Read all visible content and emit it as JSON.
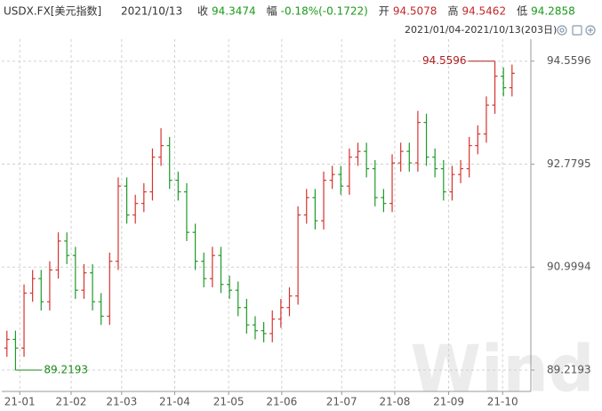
{
  "chart_data": {
    "type": "ohlc",
    "symbol": "USDX.FX[美元指数]",
    "date": "2021/10/13",
    "quote": [
      {
        "label": "收",
        "value": "94.3474",
        "color": "#1a9a1a"
      },
      {
        "label": "幅",
        "value": "-0.18%(-0.1722)",
        "color": "#1a9a1a"
      },
      {
        "label": "开",
        "value": "94.5078",
        "color": "#c0282b"
      },
      {
        "label": "高",
        "value": "94.5462",
        "color": "#c0282b"
      },
      {
        "label": "低",
        "value": "94.2858",
        "color": "#1a9a1a"
      }
    ],
    "range": "2021/01/04-2021/10/13(203日)",
    "watermark": "Wind",
    "up_color": "#d6332f",
    "down_color": "#1f9a2a",
    "open": [
      89.6,
      89.75,
      89.6,
      90.55,
      90.8,
      90.4,
      90.95,
      91.45,
      91.2,
      90.6,
      90.9,
      90.4,
      90.15,
      91.1,
      92.4,
      91.9,
      92.1,
      92.3,
      92.9,
      93.1,
      92.5,
      92.3,
      91.6,
      91.1,
      90.8,
      91.2,
      90.7,
      90.6,
      90.3,
      90.0,
      89.9,
      89.85,
      90.1,
      90.3,
      90.5,
      91.9,
      92.2,
      91.8,
      92.5,
      92.6,
      92.4,
      92.9,
      93.0,
      92.7,
      92.2,
      92.1,
      92.8,
      93.0,
      92.8,
      93.5,
      92.9,
      92.7,
      92.3,
      92.6,
      92.7,
      93.1,
      93.3,
      93.8,
      94.3,
      94.1
    ],
    "high": [
      89.9,
      89.9,
      90.7,
      90.95,
      90.95,
      91.1,
      91.6,
      91.6,
      91.35,
      91.05,
      91.05,
      90.55,
      91.25,
      92.55,
      92.55,
      92.25,
      92.45,
      93.05,
      93.4,
      93.25,
      92.65,
      92.45,
      91.75,
      91.25,
      91.35,
      91.35,
      90.85,
      90.75,
      90.45,
      90.15,
      90.05,
      90.25,
      90.45,
      90.65,
      92.05,
      92.35,
      92.35,
      92.65,
      92.75,
      92.75,
      93.05,
      93.15,
      93.15,
      92.85,
      92.35,
      92.95,
      93.15,
      93.15,
      93.7,
      93.65,
      93.05,
      92.85,
      92.75,
      92.85,
      93.25,
      93.45,
      93.95,
      94.5596,
      94.45,
      94.5
    ],
    "low": [
      89.45,
      89.2193,
      89.45,
      90.4,
      90.25,
      90.25,
      90.8,
      91.05,
      90.45,
      90.45,
      90.25,
      90.0,
      90.0,
      90.95,
      91.75,
      91.75,
      91.95,
      92.15,
      92.75,
      92.35,
      92.15,
      91.45,
      90.95,
      90.65,
      90.65,
      90.55,
      90.45,
      90.15,
      89.85,
      89.75,
      89.7,
      89.7,
      89.95,
      90.15,
      90.35,
      91.75,
      91.65,
      91.65,
      92.35,
      92.25,
      92.25,
      92.75,
      92.55,
      92.05,
      91.95,
      91.95,
      92.65,
      92.65,
      92.65,
      92.75,
      92.55,
      92.15,
      92.15,
      92.45,
      92.55,
      92.95,
      93.15,
      93.65,
      93.95,
      93.95
    ],
    "close": [
      89.75,
      89.6,
      90.55,
      90.8,
      90.4,
      90.95,
      91.45,
      91.2,
      90.6,
      90.9,
      90.4,
      90.15,
      91.1,
      92.4,
      91.9,
      92.1,
      92.3,
      92.9,
      93.1,
      92.5,
      92.3,
      91.6,
      91.1,
      90.8,
      91.2,
      90.7,
      90.6,
      90.3,
      90.0,
      89.9,
      89.85,
      90.1,
      90.3,
      90.5,
      91.9,
      92.2,
      91.8,
      92.5,
      92.6,
      92.4,
      92.9,
      93.0,
      92.7,
      92.2,
      92.1,
      92.8,
      93.0,
      92.8,
      93.5,
      92.9,
      92.7,
      92.3,
      92.6,
      92.7,
      93.1,
      93.3,
      93.8,
      94.3,
      94.1,
      94.35
    ],
    "xlim": [
      -0.6,
      61.2
    ],
    "xticks": [
      {
        "value": 1.5,
        "label": "21-01"
      },
      {
        "value": 7.5,
        "label": "21-02"
      },
      {
        "value": 13.4,
        "label": "21-03"
      },
      {
        "value": 19.6,
        "label": "21-04"
      },
      {
        "value": 25.9,
        "label": "21-05"
      },
      {
        "value": 32.1,
        "label": "21-06"
      },
      {
        "value": 39.1,
        "label": "21-07"
      },
      {
        "value": 45.3,
        "label": "21-08"
      },
      {
        "value": 51.6,
        "label": "21-09"
      },
      {
        "value": 57.9,
        "label": "21-10"
      }
    ],
    "ylim": [
      88.85,
      94.94
    ],
    "yticks": [
      89.2193,
      90.9994,
      92.7795,
      94.5596
    ],
    "grid": true,
    "annotations": [
      {
        "x": 57,
        "value": 94.5596,
        "label": "94.5596",
        "color": "#b0201f",
        "side": "left"
      },
      {
        "x": 1,
        "value": 89.2193,
        "label": "89.2193",
        "color": "#1a8a1a",
        "side": "right"
      }
    ]
  }
}
